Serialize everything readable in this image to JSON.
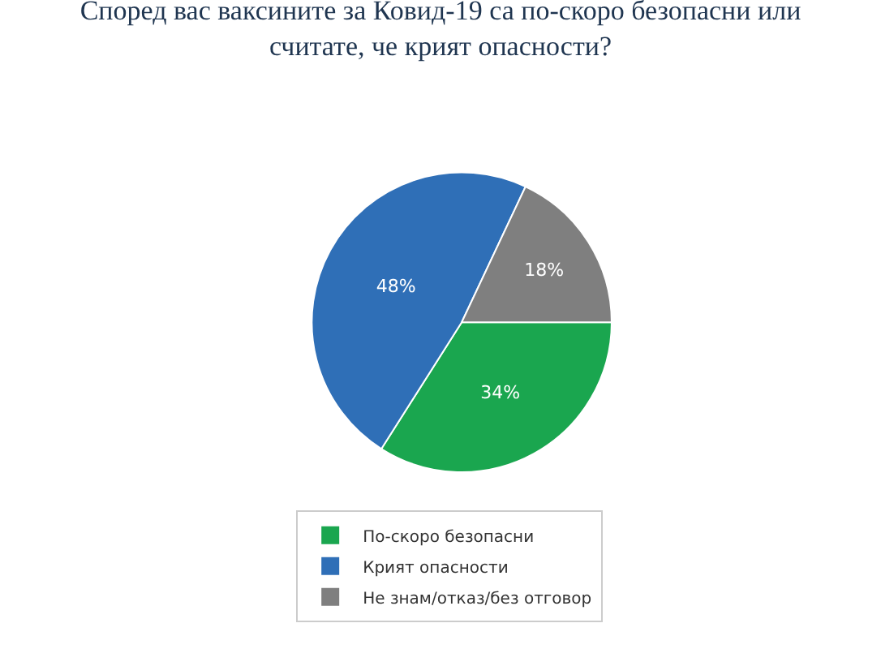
{
  "chart_data": {
    "type": "pie",
    "title": "Според вас ваксините за Ковид-19 са по-скоро безопасни или считате, че крият опасности?",
    "categories": [
      "По-скоро безопасни",
      "Крият опасности",
      "Не знам/отказ/без отговор"
    ],
    "values": [
      34,
      48,
      18
    ],
    "colors": [
      "#1aa64f",
      "#2f6fb7",
      "#7f7f7f"
    ],
    "value_labels": [
      "34%",
      "48%",
      "18%"
    ],
    "legend": "bottom"
  }
}
